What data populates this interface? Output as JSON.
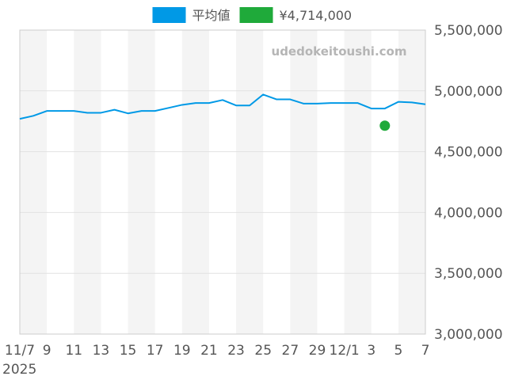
{
  "chart_data": {
    "type": "line",
    "legend": {
      "placement": "top-center",
      "items": [
        {
          "label": "平均値",
          "color": "#0099e6"
        },
        {
          "label": "¥4,714,000",
          "color": "#1faa3a"
        }
      ]
    },
    "watermark": "udedokeitoushi.com",
    "x_tick_labels": [
      "11/7",
      "9",
      "11",
      "13",
      "15",
      "17",
      "19",
      "21",
      "23",
      "25",
      "27",
      "29",
      "12/1",
      "3",
      "5",
      "7"
    ],
    "x_tick_days": [
      0,
      2,
      4,
      6,
      8,
      10,
      12,
      14,
      16,
      18,
      20,
      22,
      24,
      26,
      28,
      30
    ],
    "x_year_label": "2025",
    "xlim_days": [
      0,
      30
    ],
    "ylim": [
      3000000,
      5500000
    ],
    "y_ticks": [
      3000000,
      3500000,
      4000000,
      4500000,
      5000000,
      5500000
    ],
    "y_tick_labels": [
      "3,000,000",
      "3,500,000",
      "4,000,000",
      "4,500,000",
      "5,000,000",
      "5,500,000"
    ],
    "grid": true,
    "alternating_bands": true,
    "series": [
      {
        "name": "平均値",
        "color": "#0099e6",
        "dates": [
          "11/7",
          "11/8",
          "11/9",
          "11/10",
          "11/11",
          "11/12",
          "11/13",
          "11/14",
          "11/15",
          "11/16",
          "11/17",
          "11/18",
          "11/19",
          "11/20",
          "11/21",
          "11/22",
          "11/23",
          "11/24",
          "11/25",
          "11/26",
          "11/27",
          "11/28",
          "11/29",
          "11/30",
          "12/1",
          "12/2",
          "12/3",
          "12/4",
          "12/5",
          "12/6",
          "12/7"
        ],
        "x": [
          0,
          1,
          2,
          3,
          4,
          5,
          6,
          7,
          8,
          9,
          10,
          11,
          12,
          13,
          14,
          15,
          16,
          17,
          18,
          19,
          20,
          21,
          22,
          23,
          24,
          25,
          26,
          27,
          28,
          29,
          30
        ],
        "values": [
          4770000,
          4795000,
          4835000,
          4835000,
          4835000,
          4820000,
          4820000,
          4845000,
          4815000,
          4835000,
          4835000,
          4860000,
          4885000,
          4900000,
          4900000,
          4925000,
          4880000,
          4880000,
          4970000,
          4930000,
          4930000,
          4895000,
          4895000,
          4900000,
          4900000,
          4900000,
          4855000,
          4855000,
          4910000,
          4905000,
          4890000
        ]
      },
      {
        "name": "¥4,714,000",
        "color": "#1faa3a",
        "type": "scatter",
        "points": [
          {
            "x": 27,
            "date": "12/4",
            "value": 4714000
          }
        ]
      }
    ]
  }
}
